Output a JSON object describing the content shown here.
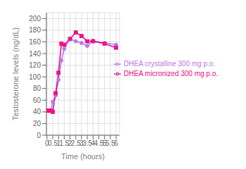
{
  "chart_data": {
    "type": "line",
    "xlabel": "Time (hours)",
    "ylabel": "Testosterone levels (ng/dL)",
    "x": [
      0,
      0.17,
      0.33,
      0.5,
      0.75,
      1.0,
      1.25,
      1.5,
      2.0,
      2.5,
      3.0,
      3.5,
      4.0,
      5.0,
      6.0
    ],
    "series": [
      {
        "name": "DHEA crystalline 300 mg p.o.",
        "color": "#bb77ee",
        "marker": "circle",
        "values": [
          42,
          42,
          42,
          57,
          68,
          95,
          128,
          148,
          165,
          161,
          158,
          153,
          162,
          158,
          155
        ]
      },
      {
        "name": "DHEA micronized 300 mg p.o.",
        "color": "#ee1188",
        "marker": "square",
        "values": [
          42,
          42,
          42,
          40,
          72,
          107,
          157,
          155,
          165,
          176,
          170,
          161,
          161,
          157,
          150
        ]
      }
    ],
    "xlim": [
      -0.05,
      6.3
    ],
    "ylim": [
      0,
      210
    ],
    "xticks": [
      0,
      0.5,
      1,
      1.5,
      2,
      2.5,
      3,
      3.5,
      4,
      4.5,
      5,
      5.5,
      6
    ],
    "yticks": [
      0,
      20,
      40,
      60,
      80,
      100,
      120,
      140,
      160,
      180,
      200
    ],
    "grid": true,
    "legend": "right"
  }
}
